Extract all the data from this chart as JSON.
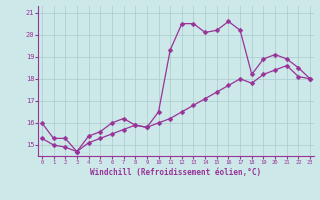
{
  "xlabel": "Windchill (Refroidissement éolien,°C)",
  "x_hours": [
    0,
    1,
    2,
    3,
    4,
    5,
    6,
    7,
    8,
    9,
    10,
    11,
    12,
    13,
    14,
    15,
    16,
    17,
    18,
    19,
    20,
    21,
    22,
    23
  ],
  "temp_line": [
    16.0,
    15.3,
    15.3,
    14.7,
    15.4,
    15.6,
    16.0,
    16.2,
    15.9,
    15.8,
    16.5,
    19.3,
    20.5,
    20.5,
    20.1,
    20.2,
    20.6,
    20.2,
    18.2,
    18.9,
    19.1,
    18.9,
    18.5,
    18.0
  ],
  "wind_line": [
    15.3,
    15.0,
    14.9,
    14.7,
    15.1,
    15.3,
    15.5,
    15.7,
    15.9,
    15.8,
    16.0,
    16.2,
    16.5,
    16.8,
    17.1,
    17.4,
    17.7,
    18.0,
    17.8,
    18.2,
    18.4,
    18.6,
    18.1,
    18.0
  ],
  "ylim": [
    14.5,
    21.3
  ],
  "yticks": [
    15,
    16,
    17,
    18,
    19,
    20,
    21
  ],
  "ytick_labels": [
    "15",
    "16",
    "17",
    "18",
    "19",
    "20",
    "21"
  ],
  "xlim": [
    -0.3,
    23.3
  ],
  "xticks": [
    0,
    1,
    2,
    3,
    4,
    5,
    6,
    7,
    8,
    9,
    10,
    11,
    12,
    13,
    14,
    15,
    16,
    17,
    18,
    19,
    20,
    21,
    22,
    23
  ],
  "line_color": "#993399",
  "bg_color": "#cce8e8",
  "grid_color": "#aacccc",
  "tick_color": "#993399",
  "label_color": "#993399",
  "marker": "D",
  "marker_size": 2.5,
  "linewidth": 0.9
}
